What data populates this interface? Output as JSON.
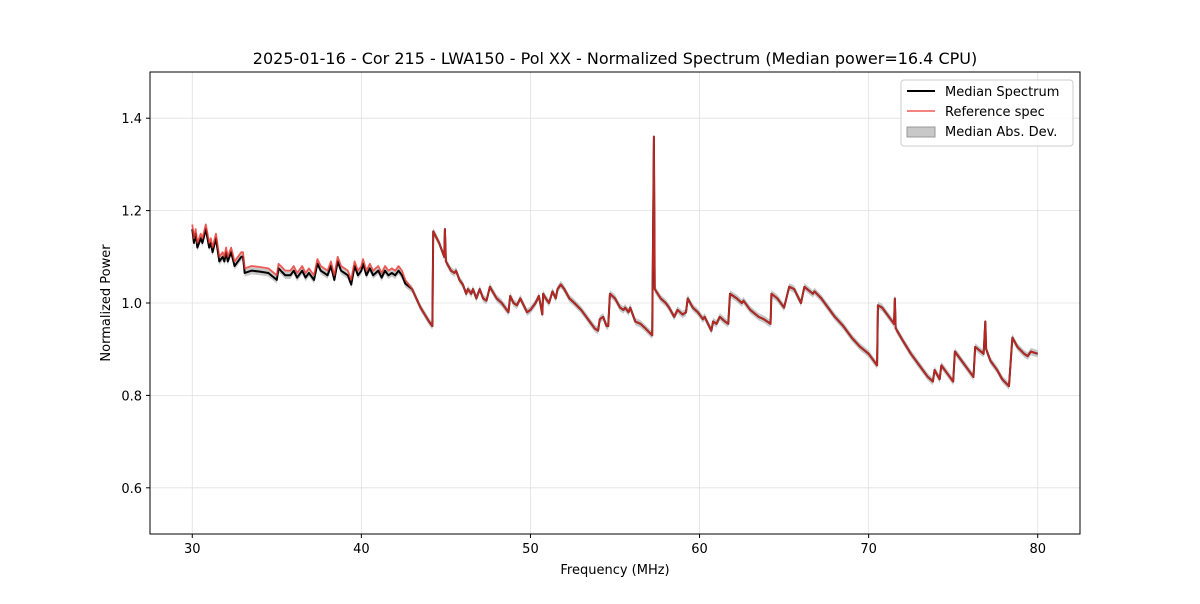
{
  "chart_data": {
    "type": "line",
    "title": "2025-01-16 - Cor 215 - LWA150 - Pol XX - Normalized Spectrum (Median power=16.4 CPU)",
    "xlabel": "Frequency (MHz)",
    "ylabel": "Normalized Power",
    "xlim": [
      27.5,
      82.5
    ],
    "ylim": [
      0.5,
      1.5
    ],
    "xticks": [
      30,
      40,
      50,
      60,
      70,
      80
    ],
    "yticks": [
      0.6,
      0.8,
      1.0,
      1.2,
      1.4
    ],
    "xtick_labels": [
      "30",
      "40",
      "50",
      "60",
      "70",
      "80"
    ],
    "ytick_labels": [
      "0.6",
      "0.8",
      "1.0",
      "1.2",
      "1.4"
    ],
    "grid": true,
    "legend_position": "top-right",
    "legend": [
      "Median Spectrum",
      "Reference spec",
      "Median Abs. Dev."
    ],
    "colors": {
      "median": "#000000",
      "reference": "#e8312a",
      "mad": "#b0b0b0"
    },
    "median_minus_reference_below_43MHz": -0.01,
    "mad_halfwidth": 0.008,
    "reference_points": [
      [
        30.0,
        1.17
      ],
      [
        30.1,
        1.14
      ],
      [
        30.2,
        1.16
      ],
      [
        30.3,
        1.13
      ],
      [
        30.5,
        1.15
      ],
      [
        30.6,
        1.14
      ],
      [
        30.8,
        1.17
      ],
      [
        31.0,
        1.13
      ],
      [
        31.1,
        1.14
      ],
      [
        31.2,
        1.12
      ],
      [
        31.4,
        1.15
      ],
      [
        31.6,
        1.1
      ],
      [
        31.8,
        1.11
      ],
      [
        31.9,
        1.1
      ],
      [
        32.0,
        1.12
      ],
      [
        32.1,
        1.1
      ],
      [
        32.3,
        1.12
      ],
      [
        32.5,
        1.09
      ],
      [
        32.7,
        1.1
      ],
      [
        32.9,
        1.11
      ],
      [
        33.0,
        1.11
      ],
      [
        33.1,
        1.075
      ],
      [
        33.5,
        1.08
      ],
      [
        34.0,
        1.078
      ],
      [
        34.5,
        1.075
      ],
      [
        35.0,
        1.06
      ],
      [
        35.1,
        1.085
      ],
      [
        35.5,
        1.07
      ],
      [
        35.8,
        1.07
      ],
      [
        36.0,
        1.08
      ],
      [
        36.2,
        1.065
      ],
      [
        36.5,
        1.08
      ],
      [
        36.7,
        1.065
      ],
      [
        36.9,
        1.075
      ],
      [
        37.2,
        1.06
      ],
      [
        37.4,
        1.095
      ],
      [
        37.6,
        1.08
      ],
      [
        37.8,
        1.075
      ],
      [
        38.0,
        1.07
      ],
      [
        38.2,
        1.09
      ],
      [
        38.4,
        1.06
      ],
      [
        38.6,
        1.1
      ],
      [
        38.8,
        1.08
      ],
      [
        39.2,
        1.07
      ],
      [
        39.4,
        1.05
      ],
      [
        39.6,
        1.09
      ],
      [
        39.8,
        1.07
      ],
      [
        40.0,
        1.08
      ],
      [
        40.1,
        1.095
      ],
      [
        40.3,
        1.07
      ],
      [
        40.5,
        1.085
      ],
      [
        40.7,
        1.07
      ],
      [
        41.0,
        1.08
      ],
      [
        41.2,
        1.065
      ],
      [
        41.4,
        1.08
      ],
      [
        41.6,
        1.07
      ],
      [
        41.8,
        1.075
      ],
      [
        42.0,
        1.07
      ],
      [
        42.2,
        1.08
      ],
      [
        42.4,
        1.07
      ],
      [
        42.6,
        1.05
      ],
      [
        43.0,
        1.03
      ],
      [
        43.5,
        0.99
      ],
      [
        44.0,
        0.96
      ],
      [
        44.2,
        0.95
      ],
      [
        44.25,
        1.155
      ],
      [
        44.6,
        1.13
      ],
      [
        44.9,
        1.1
      ],
      [
        44.94,
        1.16
      ],
      [
        45.0,
        1.09
      ],
      [
        45.3,
        1.07
      ],
      [
        45.5,
        1.065
      ],
      [
        45.6,
        1.07
      ],
      [
        45.8,
        1.05
      ],
      [
        46.0,
        1.04
      ],
      [
        46.2,
        1.02
      ],
      [
        46.3,
        1.03
      ],
      [
        46.5,
        1.02
      ],
      [
        46.6,
        1.03
      ],
      [
        46.8,
        1.01
      ],
      [
        47.0,
        1.03
      ],
      [
        47.2,
        1.01
      ],
      [
        47.4,
        1.005
      ],
      [
        47.6,
        1.035
      ],
      [
        48.0,
        1.01
      ],
      [
        48.3,
        1.0
      ],
      [
        48.6,
        0.985
      ],
      [
        48.7,
        0.98
      ],
      [
        48.8,
        1.015
      ],
      [
        49.0,
        1.0
      ],
      [
        49.2,
        0.995
      ],
      [
        49.4,
        1.01
      ],
      [
        49.6,
        0.995
      ],
      [
        49.8,
        0.98
      ],
      [
        50.0,
        0.985
      ],
      [
        50.3,
        1.0
      ],
      [
        50.5,
        1.015
      ],
      [
        50.7,
        0.975
      ],
      [
        50.75,
        1.02
      ],
      [
        50.9,
        1.01
      ],
      [
        51.1,
        1.0
      ],
      [
        51.3,
        1.025
      ],
      [
        51.5,
        1.01
      ],
      [
        51.6,
        1.03
      ],
      [
        51.8,
        1.04
      ],
      [
        52.0,
        1.03
      ],
      [
        52.3,
        1.01
      ],
      [
        52.6,
        1.0
      ],
      [
        53.0,
        0.985
      ],
      [
        53.5,
        0.96
      ],
      [
        53.8,
        0.945
      ],
      [
        54.0,
        0.94
      ],
      [
        54.1,
        0.965
      ],
      [
        54.3,
        0.97
      ],
      [
        54.5,
        0.95
      ],
      [
        54.6,
        0.95
      ],
      [
        54.7,
        1.02
      ],
      [
        55.0,
        1.01
      ],
      [
        55.3,
        0.99
      ],
      [
        55.5,
        0.985
      ],
      [
        55.6,
        0.99
      ],
      [
        55.8,
        0.98
      ],
      [
        55.9,
        0.99
      ],
      [
        56.2,
        0.96
      ],
      [
        56.5,
        0.955
      ],
      [
        56.8,
        0.945
      ],
      [
        57.2,
        0.93
      ],
      [
        57.3,
        1.36
      ],
      [
        57.35,
        1.03
      ],
      [
        57.7,
        1.01
      ],
      [
        58.0,
        1.0
      ],
      [
        58.2,
        0.99
      ],
      [
        58.5,
        0.97
      ],
      [
        58.7,
        0.985
      ],
      [
        59.0,
        0.975
      ],
      [
        59.2,
        0.98
      ],
      [
        59.3,
        1.01
      ],
      [
        59.6,
        0.99
      ],
      [
        59.9,
        0.98
      ],
      [
        60.2,
        0.965
      ],
      [
        60.3,
        0.97
      ],
      [
        60.5,
        0.955
      ],
      [
        60.7,
        0.94
      ],
      [
        60.8,
        0.96
      ],
      [
        61.0,
        0.955
      ],
      [
        61.2,
        0.97
      ],
      [
        61.5,
        0.96
      ],
      [
        61.7,
        0.955
      ],
      [
        61.8,
        1.02
      ],
      [
        62.2,
        1.01
      ],
      [
        62.5,
        1.0
      ],
      [
        62.6,
        1.005
      ],
      [
        63.0,
        0.985
      ],
      [
        63.5,
        0.97
      ],
      [
        63.8,
        0.965
      ],
      [
        64.2,
        0.955
      ],
      [
        64.25,
        1.02
      ],
      [
        64.6,
        1.01
      ],
      [
        65.0,
        0.99
      ],
      [
        65.3,
        1.035
      ],
      [
        65.6,
        1.03
      ],
      [
        66.0,
        1.0
      ],
      [
        66.2,
        1.035
      ],
      [
        66.7,
        1.02
      ],
      [
        66.8,
        1.025
      ],
      [
        67.2,
        1.01
      ],
      [
        67.6,
        0.99
      ],
      [
        68.0,
        0.97
      ],
      [
        68.5,
        0.95
      ],
      [
        69.0,
        0.925
      ],
      [
        69.5,
        0.905
      ],
      [
        70.0,
        0.89
      ],
      [
        70.4,
        0.87
      ],
      [
        70.5,
        0.865
      ],
      [
        70.55,
        0.995
      ],
      [
        70.8,
        0.99
      ],
      [
        71.0,
        0.98
      ],
      [
        71.3,
        0.965
      ],
      [
        71.5,
        0.955
      ],
      [
        71.55,
        1.01
      ],
      [
        71.6,
        0.945
      ],
      [
        72.0,
        0.92
      ],
      [
        72.5,
        0.89
      ],
      [
        73.0,
        0.865
      ],
      [
        73.5,
        0.84
      ],
      [
        73.8,
        0.83
      ],
      [
        73.9,
        0.855
      ],
      [
        74.2,
        0.835
      ],
      [
        74.3,
        0.865
      ],
      [
        74.6,
        0.85
      ],
      [
        75.0,
        0.83
      ],
      [
        75.1,
        0.895
      ],
      [
        75.5,
        0.875
      ],
      [
        76.0,
        0.85
      ],
      [
        76.2,
        0.84
      ],
      [
        76.3,
        0.905
      ],
      [
        76.8,
        0.89
      ],
      [
        76.9,
        0.96
      ],
      [
        76.95,
        0.9
      ],
      [
        77.2,
        0.875
      ],
      [
        77.5,
        0.86
      ],
      [
        77.6,
        0.855
      ],
      [
        77.9,
        0.835
      ],
      [
        78.3,
        0.82
      ],
      [
        78.5,
        0.925
      ],
      [
        78.8,
        0.905
      ],
      [
        79.2,
        0.89
      ],
      [
        79.4,
        0.885
      ],
      [
        79.6,
        0.895
      ],
      [
        80.0,
        0.89
      ]
    ]
  }
}
